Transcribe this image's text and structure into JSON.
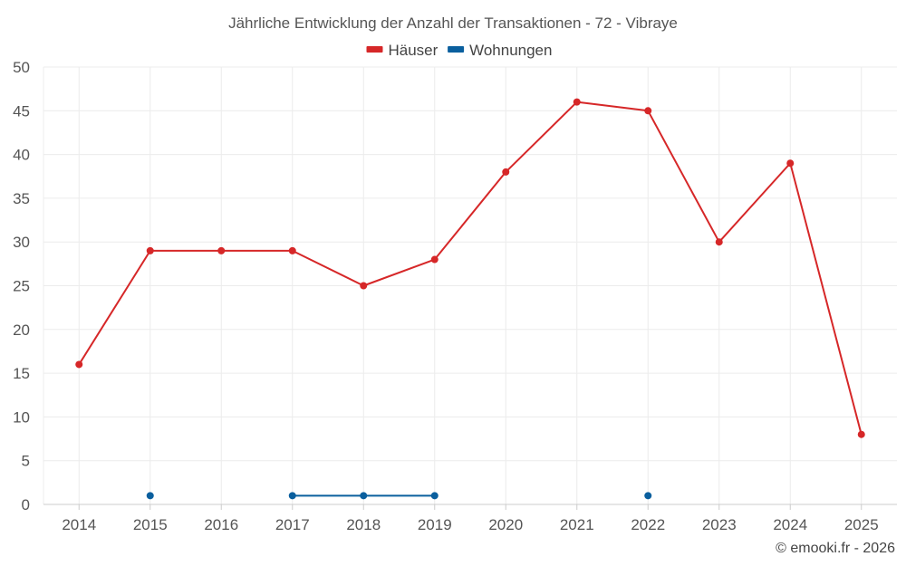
{
  "chart_data": {
    "type": "line",
    "title": "Jährliche Entwicklung der Anzahl der Transaktionen - 72 - Vibraye",
    "categories": [
      "2014",
      "2015",
      "2016",
      "2017",
      "2018",
      "2019",
      "2020",
      "2021",
      "2022",
      "2023",
      "2024",
      "2025"
    ],
    "ylim": [
      0,
      50
    ],
    "yticks": [
      0,
      5,
      10,
      15,
      20,
      25,
      30,
      35,
      40,
      45,
      50
    ],
    "grid": true,
    "legend_position": "top-center",
    "series": [
      {
        "name": "Häuser",
        "color": "#d62728",
        "values": [
          16,
          29,
          29,
          29,
          25,
          28,
          38,
          46,
          45,
          30,
          39,
          8
        ]
      },
      {
        "name": "Wohnungen",
        "color": "#0a5f9e",
        "values": [
          null,
          1,
          null,
          1,
          1,
          1,
          null,
          null,
          1,
          null,
          null,
          null
        ]
      }
    ]
  },
  "credit": "© emooki.fr - 2026"
}
